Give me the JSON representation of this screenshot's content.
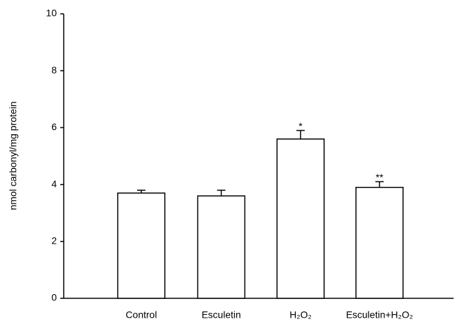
{
  "chart_data": {
    "type": "bar",
    "ylabel": "nmol carbonyl/mg protein",
    "categories": [
      "Control",
      "Esculetin",
      "H₂O₂",
      "Esculetin+H₂O₂"
    ],
    "values": [
      3.7,
      3.6,
      5.6,
      3.9
    ],
    "errors": [
      0.1,
      0.2,
      0.3,
      0.2
    ],
    "significance": [
      null,
      null,
      "*",
      "**"
    ],
    "color": "#ffffff",
    "ylim": [
      0,
      10
    ],
    "yticks": [
      0,
      2,
      4,
      6,
      8,
      10
    ],
    "grid": false
  }
}
